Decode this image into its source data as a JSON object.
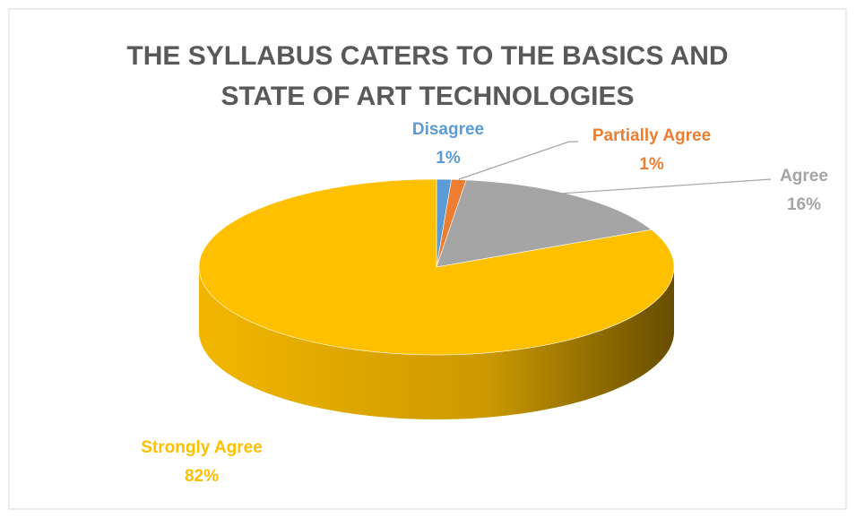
{
  "chart_data": {
    "type": "pie3d",
    "title": "THE SYLLABUS CATERS TO THE BASICS AND STATE OF ART TECHNOLOGIES",
    "categories": [
      "Disagree",
      "Partially Agree",
      "Agree",
      "Strongly Agree"
    ],
    "values": [
      1,
      1,
      16,
      82
    ],
    "value_labels": [
      "1%",
      "1%",
      "16%",
      "82%"
    ],
    "colors": [
      "#5b9bd5",
      "#ed7d31",
      "#a5a5a5",
      "#ffc000"
    ]
  }
}
